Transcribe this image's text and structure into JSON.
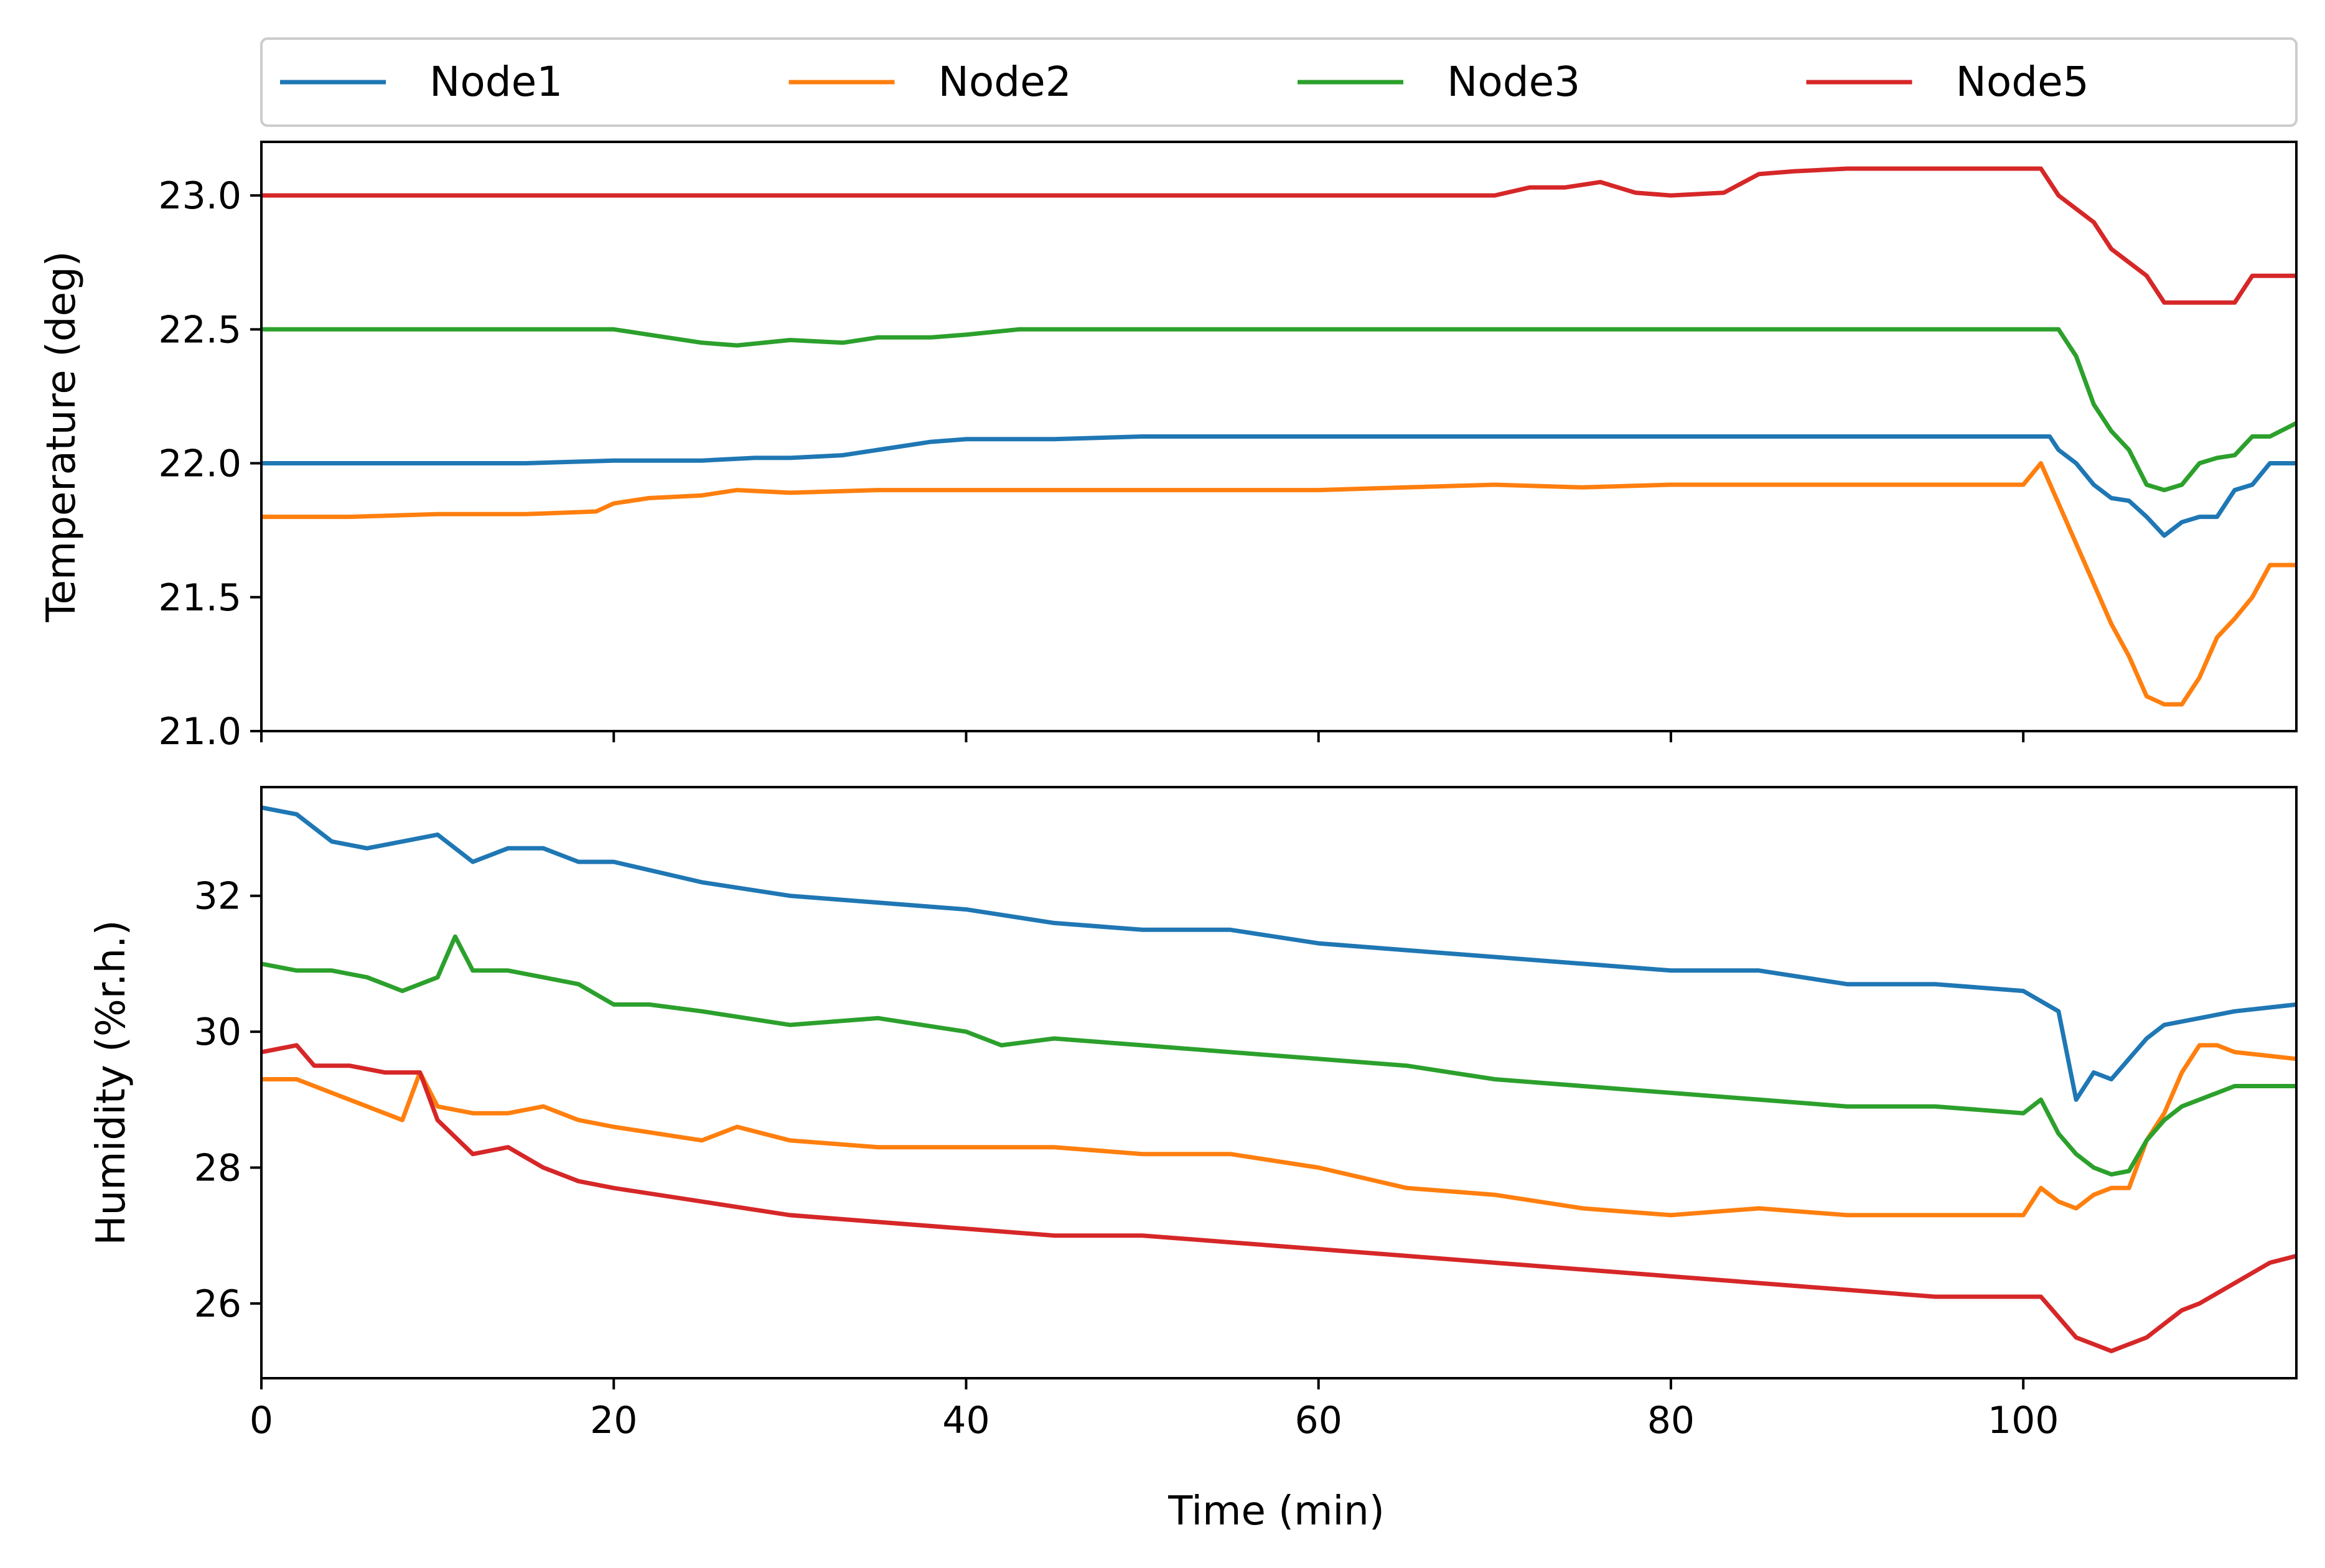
{
  "chart_data": {
    "type": "line",
    "legend": {
      "placement": "top",
      "entries": [
        {
          "name": "Node1",
          "color": "#1f77b4"
        },
        {
          "name": "Node2",
          "color": "#ff7f0e"
        },
        {
          "name": "Node3",
          "color": "#2ca02c"
        },
        {
          "name": "Node5",
          "color": "#d62728"
        }
      ]
    },
    "xlabel": "Time (min)",
    "xlim": [
      0,
      115.5
    ],
    "xticks": [
      0,
      20,
      40,
      60,
      80,
      100
    ],
    "xtick_labels": [
      "0",
      "20",
      "40",
      "60",
      "80",
      "100"
    ],
    "grid": false,
    "panels": [
      {
        "id": "temperature",
        "ylabel": "Temperature (deg)",
        "ylim": [
          21.0,
          23.2
        ],
        "yticks": [
          21.0,
          21.5,
          22.0,
          22.5,
          23.0
        ],
        "ytick_labels": [
          "21.0",
          "21.5",
          "22.0",
          "22.5",
          "23.0"
        ],
        "show_xtick_labels": false,
        "series": [
          {
            "name": "Node1",
            "color": "#1f77b4",
            "x": [
              0,
              5,
              10,
              15,
              20,
              25,
              28,
              30,
              33,
              35,
              38,
              40,
              45,
              50,
              60,
              70,
              80,
              90,
              95,
              100,
              101.5,
              102,
              103,
              104,
              105,
              106,
              107,
              108,
              109,
              110,
              111,
              112,
              113,
              114,
              115.5
            ],
            "y": [
              22.0,
              22.0,
              22.0,
              22.0,
              22.01,
              22.01,
              22.02,
              22.02,
              22.03,
              22.05,
              22.08,
              22.09,
              22.09,
              22.1,
              22.1,
              22.1,
              22.1,
              22.1,
              22.1,
              22.1,
              22.1,
              22.05,
              22.0,
              21.92,
              21.87,
              21.86,
              21.8,
              21.73,
              21.78,
              21.8,
              21.8,
              21.9,
              21.92,
              22.0,
              22.0
            ]
          },
          {
            "name": "Node2",
            "color": "#ff7f0e",
            "x": [
              0,
              5,
              10,
              15,
              19,
              20,
              22,
              25,
              27,
              30,
              35,
              40,
              45,
              50,
              60,
              65,
              70,
              75,
              80,
              85,
              90,
              95,
              100,
              101,
              102,
              103,
              104,
              105,
              106,
              107,
              108,
              109,
              110,
              111,
              112,
              113,
              114,
              115.5
            ],
            "y": [
              21.8,
              21.8,
              21.81,
              21.81,
              21.82,
              21.85,
              21.87,
              21.88,
              21.9,
              21.89,
              21.9,
              21.9,
              21.9,
              21.9,
              21.9,
              21.91,
              21.92,
              21.91,
              21.92,
              21.92,
              21.92,
              21.92,
              21.92,
              22.0,
              21.85,
              21.7,
              21.55,
              21.4,
              21.28,
              21.13,
              21.1,
              21.1,
              21.2,
              21.35,
              21.42,
              21.5,
              21.62,
              21.62
            ]
          },
          {
            "name": "Node3",
            "color": "#2ca02c",
            "x": [
              0,
              5,
              10,
              15,
              20,
              22,
              25,
              27,
              30,
              33,
              35,
              38,
              40,
              43,
              45,
              50,
              60,
              70,
              80,
              90,
              100,
              102,
              103,
              104,
              105,
              106,
              107,
              108,
              109,
              110,
              111,
              112,
              113,
              114,
              115.5
            ],
            "y": [
              22.5,
              22.5,
              22.5,
              22.5,
              22.5,
              22.48,
              22.45,
              22.44,
              22.46,
              22.45,
              22.47,
              22.47,
              22.48,
              22.5,
              22.5,
              22.5,
              22.5,
              22.5,
              22.5,
              22.5,
              22.5,
              22.5,
              22.4,
              22.22,
              22.12,
              22.05,
              21.92,
              21.9,
              21.92,
              22.0,
              22.02,
              22.03,
              22.1,
              22.1,
              22.15
            ]
          },
          {
            "name": "Node5",
            "color": "#d62728",
            "x": [
              0,
              10,
              20,
              30,
              40,
              50,
              60,
              70,
              72,
              74,
              76,
              78,
              80,
              83,
              85,
              87,
              90,
              95,
              100,
              101,
              102,
              103,
              104,
              105,
              106,
              107,
              108,
              109,
              110,
              111,
              112,
              113,
              114,
              115.5
            ],
            "y": [
              23.0,
              23.0,
              23.0,
              23.0,
              23.0,
              23.0,
              23.0,
              23.0,
              23.03,
              23.03,
              23.05,
              23.01,
              23.0,
              23.01,
              23.08,
              23.09,
              23.1,
              23.1,
              23.1,
              23.1,
              23.0,
              22.95,
              22.9,
              22.8,
              22.75,
              22.7,
              22.6,
              22.6,
              22.6,
              22.6,
              22.6,
              22.7,
              22.7,
              22.7
            ]
          }
        ]
      },
      {
        "id": "humidity",
        "ylabel": "Humidity (%r.h.)",
        "ylim": [
          24.9,
          33.6
        ],
        "yticks": [
          26,
          28,
          30,
          32
        ],
        "ytick_labels": [
          "26",
          "28",
          "30",
          "32"
        ],
        "show_xtick_labels": true,
        "series": [
          {
            "name": "Node1",
            "color": "#1f77b4",
            "x": [
              0,
              2,
              4,
              6,
              8,
              10,
              12,
              14,
              16,
              18,
              20,
              25,
              30,
              35,
              40,
              45,
              50,
              55,
              60,
              65,
              70,
              75,
              80,
              85,
              90,
              95,
              100,
              102,
              103,
              104,
              105,
              106,
              107,
              108,
              110,
              112,
              115.5
            ],
            "y": [
              33.3,
              33.2,
              32.8,
              32.7,
              32.8,
              32.9,
              32.5,
              32.7,
              32.7,
              32.5,
              32.5,
              32.2,
              32.0,
              31.9,
              31.8,
              31.6,
              31.5,
              31.5,
              31.3,
              31.2,
              31.1,
              31.0,
              30.9,
              30.9,
              30.7,
              30.7,
              30.6,
              30.3,
              29.0,
              29.4,
              29.3,
              29.6,
              29.9,
              30.1,
              30.2,
              30.3,
              30.4
            ]
          },
          {
            "name": "Node2",
            "color": "#ff7f0e",
            "x": [
              0,
              2,
              4,
              6,
              8,
              9,
              10,
              12,
              14,
              16,
              18,
              20,
              25,
              27,
              30,
              35,
              40,
              45,
              50,
              55,
              60,
              65,
              70,
              75,
              80,
              85,
              90,
              95,
              100,
              101,
              102,
              103,
              104,
              105,
              106,
              107,
              108,
              109,
              110,
              111,
              112,
              115.5
            ],
            "y": [
              29.3,
              29.3,
              29.1,
              28.9,
              28.7,
              29.4,
              28.9,
              28.8,
              28.8,
              28.9,
              28.7,
              28.6,
              28.4,
              28.6,
              28.4,
              28.3,
              28.3,
              28.3,
              28.2,
              28.2,
              28.0,
              27.7,
              27.6,
              27.4,
              27.3,
              27.4,
              27.3,
              27.3,
              27.3,
              27.7,
              27.5,
              27.4,
              27.6,
              27.7,
              27.7,
              28.4,
              28.8,
              29.4,
              29.8,
              29.8,
              29.7,
              29.6
            ]
          },
          {
            "name": "Node3",
            "color": "#2ca02c",
            "x": [
              0,
              2,
              4,
              6,
              8,
              10,
              11,
              12,
              14,
              16,
              18,
              20,
              22,
              25,
              30,
              35,
              40,
              42,
              45,
              50,
              55,
              60,
              65,
              70,
              75,
              80,
              85,
              90,
              95,
              100,
              101,
              102,
              103,
              104,
              105,
              106,
              107,
              108,
              109,
              110,
              112,
              115.5
            ],
            "y": [
              31.0,
              30.9,
              30.9,
              30.8,
              30.6,
              30.8,
              31.4,
              30.9,
              30.9,
              30.8,
              30.7,
              30.4,
              30.4,
              30.3,
              30.1,
              30.2,
              30.0,
              29.8,
              29.9,
              29.8,
              29.7,
              29.6,
              29.5,
              29.3,
              29.2,
              29.1,
              29.0,
              28.9,
              28.9,
              28.8,
              29.0,
              28.5,
              28.2,
              28.0,
              27.9,
              27.95,
              28.4,
              28.7,
              28.9,
              29.0,
              29.2,
              29.2
            ]
          },
          {
            "name": "Node5",
            "color": "#d62728",
            "x": [
              0,
              2,
              3,
              5,
              7,
              9,
              10,
              12,
              14,
              16,
              18,
              20,
              25,
              30,
              35,
              40,
              45,
              50,
              55,
              60,
              65,
              70,
              75,
              80,
              85,
              90,
              95,
              100,
              101,
              102,
              103,
              104,
              105,
              106,
              107,
              108,
              109,
              110,
              112,
              114,
              115.5
            ],
            "y": [
              29.7,
              29.8,
              29.5,
              29.5,
              29.4,
              29.4,
              28.7,
              28.2,
              28.3,
              28.0,
              27.8,
              27.7,
              27.5,
              27.3,
              27.2,
              27.1,
              27.0,
              27.0,
              26.9,
              26.8,
              26.7,
              26.6,
              26.5,
              26.4,
              26.3,
              26.2,
              26.1,
              26.1,
              26.1,
              25.8,
              25.5,
              25.4,
              25.3,
              25.4,
              25.5,
              25.7,
              25.9,
              26.0,
              26.3,
              26.6,
              26.7
            ]
          }
        ]
      }
    ]
  }
}
